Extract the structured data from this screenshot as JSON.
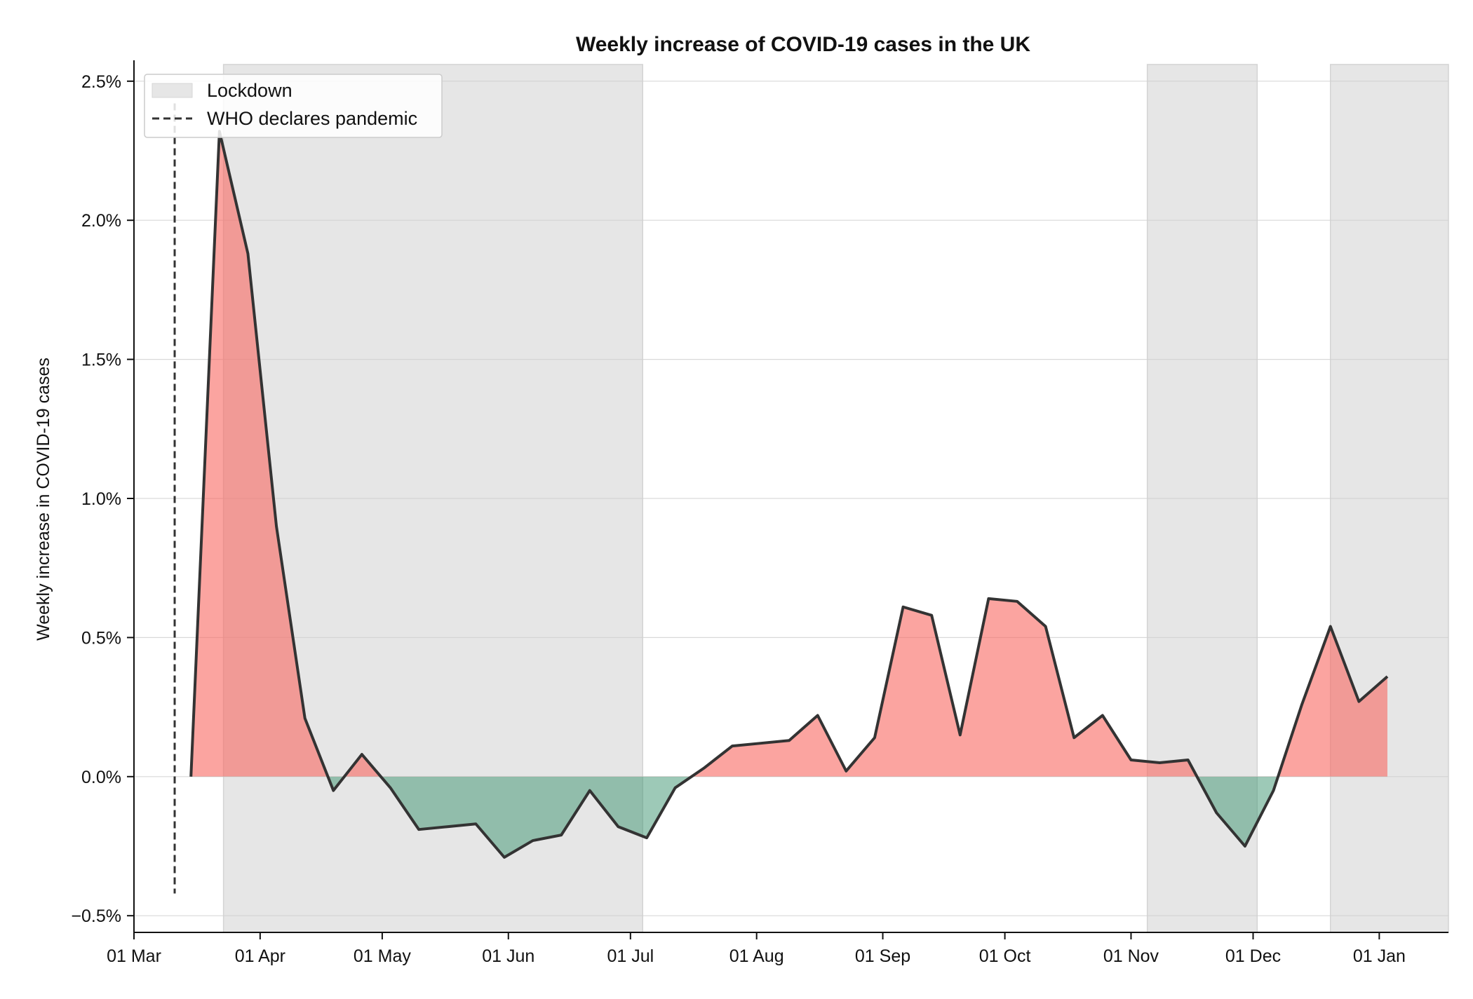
{
  "chart_data": {
    "type": "area",
    "title": "Weekly increase of COVID-19 cases in the UK",
    "xlabel": "",
    "ylabel": "Weekly increase in COVID-19 cases",
    "x_axis": {
      "type": "date",
      "range": [
        "2020-03-01",
        "2021-01-18"
      ],
      "ticks": [
        {
          "date": "2020-03-01",
          "label": "01 Mar"
        },
        {
          "date": "2020-04-01",
          "label": "01 Apr"
        },
        {
          "date": "2020-05-01",
          "label": "01 May"
        },
        {
          "date": "2020-06-01",
          "label": "01 Jun"
        },
        {
          "date": "2020-07-01",
          "label": "01 Jul"
        },
        {
          "date": "2020-08-01",
          "label": "01 Aug"
        },
        {
          "date": "2020-09-01",
          "label": "01 Sep"
        },
        {
          "date": "2020-10-01",
          "label": "01 Oct"
        },
        {
          "date": "2020-11-01",
          "label": "01 Nov"
        },
        {
          "date": "2020-12-01",
          "label": "01 Dec"
        },
        {
          "date": "2021-01-01",
          "label": "01 Jan"
        }
      ]
    },
    "y_axis": {
      "range": [
        -0.56,
        2.56
      ],
      "ticks": [
        {
          "value": -0.5,
          "label": "−0.5%"
        },
        {
          "value": 0.0,
          "label": "0.0%"
        },
        {
          "value": 0.5,
          "label": "0.5%"
        },
        {
          "value": 1.0,
          "label": "1.0%"
        },
        {
          "value": 1.5,
          "label": "1.5%"
        },
        {
          "value": 2.0,
          "label": "2.0%"
        },
        {
          "value": 2.5,
          "label": "2.5%"
        }
      ],
      "grid": true
    },
    "series": [
      {
        "x": [
          "2020-03-15",
          "2020-03-22",
          "2020-03-29",
          "2020-04-05",
          "2020-04-12",
          "2020-04-19",
          "2020-04-26",
          "2020-05-03",
          "2020-05-10",
          "2020-05-17",
          "2020-05-24",
          "2020-05-31",
          "2020-06-07",
          "2020-06-14",
          "2020-06-21",
          "2020-06-28",
          "2020-07-05",
          "2020-07-12",
          "2020-07-19",
          "2020-07-26",
          "2020-08-02",
          "2020-08-09",
          "2020-08-16",
          "2020-08-23",
          "2020-08-30",
          "2020-09-06",
          "2020-09-13",
          "2020-09-20",
          "2020-09-27",
          "2020-10-04",
          "2020-10-11",
          "2020-10-18",
          "2020-10-25",
          "2020-11-01",
          "2020-11-08",
          "2020-11-15",
          "2020-11-22",
          "2020-11-29",
          "2020-12-06",
          "2020-12-13",
          "2020-12-20",
          "2020-12-27",
          "2021-01-03"
        ],
        "values": [
          0.0,
          2.32,
          1.88,
          0.9,
          0.21,
          -0.05,
          0.08,
          -0.04,
          -0.19,
          -0.18,
          -0.17,
          -0.29,
          -0.23,
          -0.21,
          -0.05,
          -0.18,
          -0.22,
          -0.04,
          0.03,
          0.11,
          0.12,
          0.13,
          0.22,
          0.02,
          0.14,
          0.61,
          0.58,
          0.15,
          0.64,
          0.63,
          0.54,
          0.14,
          0.22,
          0.06,
          0.05,
          0.06,
          -0.13,
          -0.25,
          -0.05,
          0.26,
          0.54,
          0.27,
          0.36
        ]
      }
    ],
    "fill_colors": {
      "positive": "#f96860",
      "negative": "#3c9470"
    },
    "line_color": "#333333",
    "lockdowns": [
      {
        "start": "2020-03-23",
        "end": "2020-07-04"
      },
      {
        "start": "2020-11-05",
        "end": "2020-12-02"
      },
      {
        "start": "2020-12-20",
        "end": "2021-01-18"
      }
    ],
    "lockdown_color": "#e6e6e6",
    "who_pandemic_date": "2020-03-11",
    "who_line_range": [
      -0.42,
      2.42
    ],
    "legend": {
      "position": "top-left",
      "entries": [
        {
          "label": "Lockdown",
          "style": "patch"
        },
        {
          "label": "WHO declares pandemic",
          "style": "dashed-line"
        }
      ]
    }
  }
}
